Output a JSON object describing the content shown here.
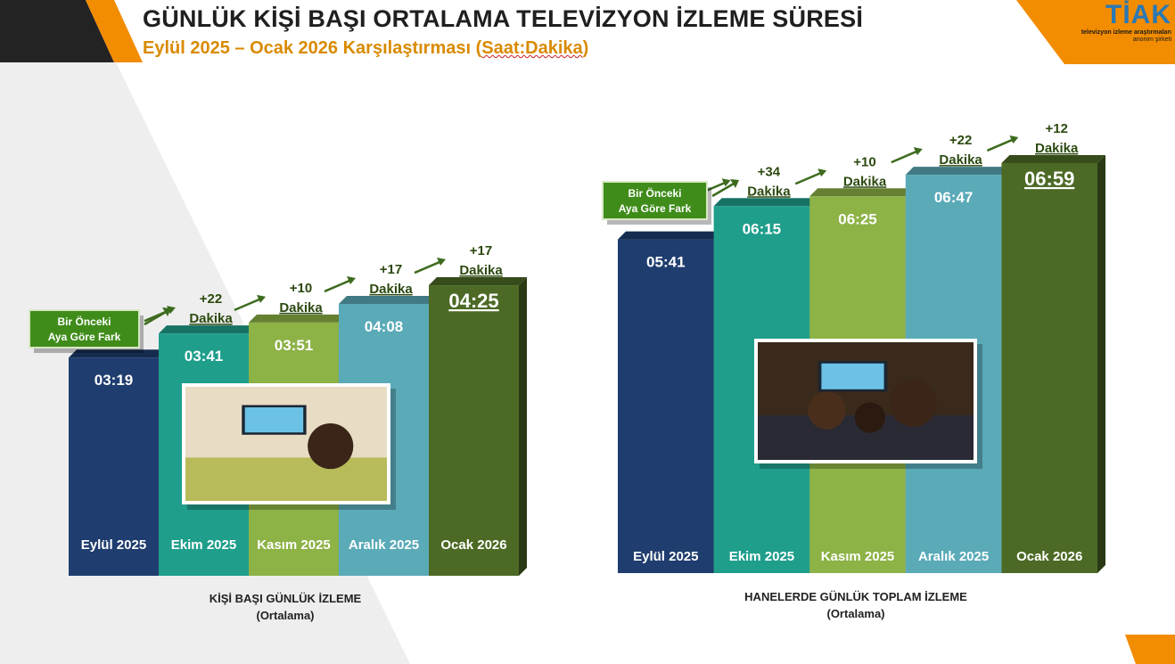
{
  "header": {
    "title": "GÜNLÜK KİŞİ BAŞI ORTALAMA TELEVİZYON İZLEME SÜRESİ",
    "subtitle_main": "Eylül 2025 – Ocak 2026 Karşılaştırması (",
    "subtitle_unit": "Saat:Dakika",
    "subtitle_end": ")"
  },
  "logo": {
    "name": "TİAK",
    "line1": "televizyon izleme araştırmaları",
    "line2": "anonim şirketi"
  },
  "colors": {
    "orange": "#f28c00",
    "green_badge": "#3f8c1a",
    "bars": [
      "#1f3d6e",
      "#1f9e8c",
      "#8db246",
      "#5aaab8",
      "#4c6a25"
    ]
  },
  "chart_data": [
    {
      "type": "bar",
      "title": "KİŞİ BAŞI GÜNLÜK İZLEME",
      "subtitle": "(Ortalama)",
      "unit": "Saat:Dakika",
      "categories": [
        "Eylül 2025",
        "Ekim 2025",
        "Kasım 2025",
        "Aralık 2025",
        "Ocak 2026"
      ],
      "values": [
        "03:19",
        "03:41",
        "03:51",
        "04:08",
        "04:25"
      ],
      "minutes": [
        199,
        221,
        231,
        248,
        265
      ],
      "diff_values": [
        "+22",
        "+10",
        "+17",
        "+17"
      ],
      "diff_unit": "Dakika",
      "badge_lines": [
        "Bir Önceki",
        "Aya Göre Fark"
      ],
      "image_label": "tv-watching-woman-image"
    },
    {
      "type": "bar",
      "title": "HANELERDE GÜNLÜK TOPLAM İZLEME",
      "subtitle": "(Ortalama)",
      "unit": "Saat:Dakika",
      "categories": [
        "Eylül 2025",
        "Ekim 2025",
        "Kasım 2025",
        "Aralık 2025",
        "Ocak 2026"
      ],
      "values": [
        "05:41",
        "06:15",
        "06:25",
        "06:47",
        "06:59"
      ],
      "minutes": [
        341,
        375,
        385,
        407,
        419
      ],
      "diff_values": [
        "+34",
        "+10",
        "+22",
        "+12"
      ],
      "diff_unit": "Dakika",
      "badge_lines": [
        "Bir Önceki",
        "Aya Göre Fark"
      ],
      "image_label": "tv-watching-family-image"
    }
  ]
}
